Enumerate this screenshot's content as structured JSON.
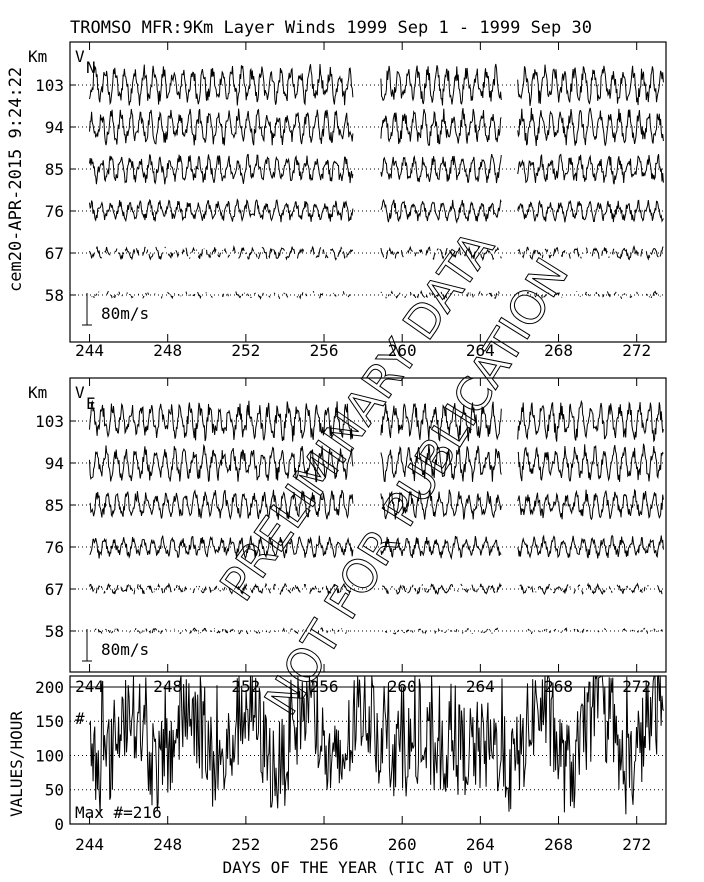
{
  "title": "TROMSO MFR:9Km Layer Winds 1999 Sep  1 - 1999 Sep 30",
  "side_timestamp": "cem20-APR-2015  9:24:22",
  "watermark": {
    "line1": "PRELIMINARY DATA",
    "line2": "NOT FOR PUBLICATION"
  },
  "chart_data": [
    {
      "type": "line",
      "panel": "V_N",
      "component_symbol": "V",
      "component_subscript": "N",
      "ylabel": "Km",
      "height_labels": [
        "103",
        "94",
        "85",
        "76",
        "67",
        "58"
      ],
      "heights_km": [
        103,
        94,
        85,
        76,
        67,
        58
      ],
      "scale_label": "80m/s",
      "xlim": [
        243,
        273.5
      ],
      "xticks": [
        244,
        248,
        252,
        256,
        260,
        264,
        268,
        272
      ],
      "grid": "dotted baselines per height",
      "data_gaps": [
        [
          257.5,
          258.9
        ],
        [
          265.1,
          265.9
        ]
      ]
    },
    {
      "type": "line",
      "panel": "V_E",
      "component_symbol": "V",
      "component_subscript": "E",
      "ylabel": "Km",
      "height_labels": [
        "103",
        "94",
        "85",
        "76",
        "67",
        "58"
      ],
      "heights_km": [
        103,
        94,
        85,
        76,
        67,
        58
      ],
      "scale_label": "80m/s",
      "xlim": [
        243,
        273.5
      ],
      "xticks": [
        244,
        248,
        252,
        256,
        260,
        264,
        268,
        272
      ],
      "grid": "dotted baselines per height",
      "data_gaps": [
        [
          257.5,
          258.9
        ],
        [
          265.1,
          265.9
        ]
      ]
    },
    {
      "type": "line",
      "panel": "count",
      "ylabel": "VALUES/HOUR",
      "series_marker": "#",
      "annotation": "Max #=216",
      "ylim": [
        0,
        216
      ],
      "yticks": [
        0,
        50,
        100,
        150,
        200
      ],
      "xlim": [
        243,
        273.5
      ],
      "xticks": [
        244,
        248,
        252,
        256,
        260,
        264,
        268,
        272
      ],
      "xlabel": "DAYS OF THE YEAR (TIC AT 0 UT)",
      "grid": "dotted at 50, 100, 150; solid at 200",
      "max_value": 216
    }
  ]
}
